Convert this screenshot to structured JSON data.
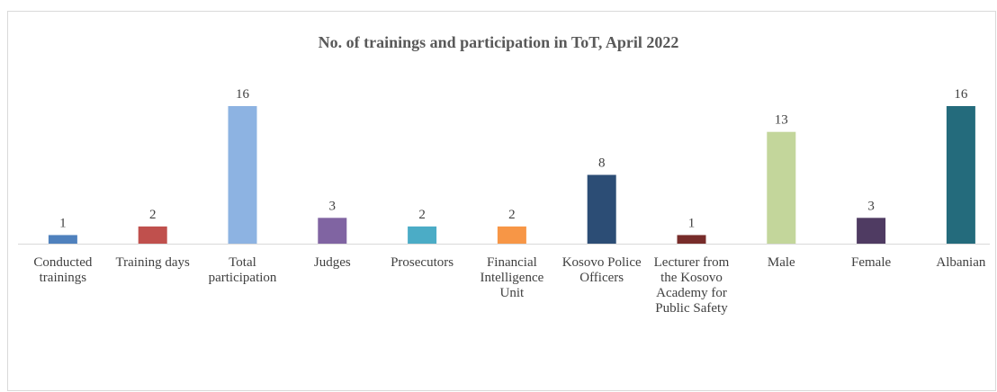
{
  "chart_data": {
    "type": "bar",
    "title": "No. of trainings  and  participation  in ToT, April 2022",
    "categories": [
      "Conducted trainings",
      "Training days",
      "Total participation",
      "Judges",
      "Prosecutors",
      "Financial Intelligence Unit",
      "Kosovo Police Officers",
      "Lecturer from the Kosovo Academy for Public Safety",
      "Male",
      "Female",
      "Albanian"
    ],
    "values": [
      1,
      2,
      16,
      3,
      2,
      2,
      8,
      1,
      13,
      3,
      16
    ],
    "colors": [
      "#4f81bd",
      "#c0504d",
      "#8db3e2",
      "#8064a2",
      "#4bacc6",
      "#f79646",
      "#2c4d75",
      "#772c2a",
      "#c3d69b",
      "#4f3b62",
      "#246b7c"
    ],
    "ylim": [
      0,
      16
    ]
  }
}
